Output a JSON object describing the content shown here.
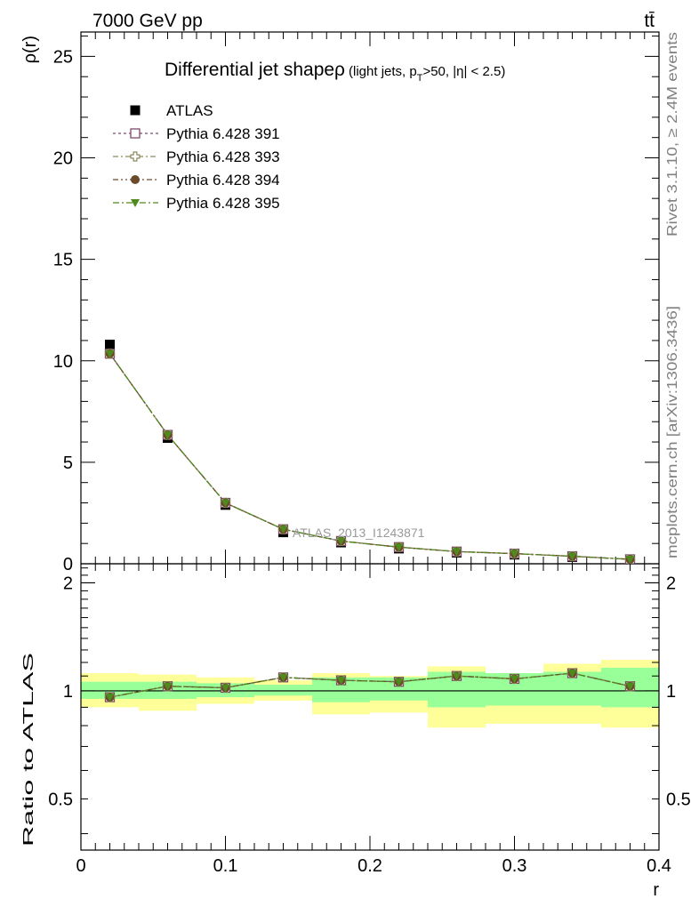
{
  "header": {
    "left": "7000 GeV pp",
    "right": "tt̄"
  },
  "side_labels": {
    "rivet": "Rivet 3.1.10, ≥ 2.4M events",
    "mcplots": "mcplots.cern.ch [arXiv:1306.3436]"
  },
  "watermark": "ATLAS_2013_I1243871",
  "chart_data": [
    {
      "panel": "main",
      "type": "line",
      "title": "Differential jet shapeρ",
      "title_suffix": "(light jets, p_T>50, |η| < 2.5)",
      "title_suffix_parts": [
        "(light jets, p",
        "T",
        ">50, |η| < 2.5)"
      ],
      "ylabel": "ρ(r)",
      "xlabel": "",
      "xlim": [
        0,
        0.4
      ],
      "ylim": [
        0,
        26.2
      ],
      "yticks": [
        0,
        5,
        10,
        15,
        20,
        25
      ],
      "ytick_labels": [
        "0",
        "5",
        "10",
        "15",
        "20",
        "25"
      ],
      "legend_position": "top-left",
      "x": [
        0.02,
        0.06,
        0.1,
        0.14,
        0.18,
        0.22,
        0.26,
        0.3,
        0.34,
        0.38
      ],
      "series": [
        {
          "name": "ATLAS",
          "marker": "square-filled",
          "color": "#000000",
          "values": [
            10.8,
            6.2,
            2.9,
            1.55,
            1.05,
            0.75,
            0.55,
            0.45,
            0.33,
            0.2
          ]
        },
        {
          "name": "Pythia 6.428 391",
          "marker": "square-open",
          "color": "#7b4a6a",
          "values": [
            10.35,
            6.35,
            3.0,
            1.7,
            1.12,
            0.82,
            0.6,
            0.5,
            0.37,
            0.22
          ]
        },
        {
          "name": "Pythia 6.428 393",
          "marker": "cross-open",
          "color": "#8a8a5a",
          "values": [
            10.35,
            6.35,
            3.0,
            1.7,
            1.12,
            0.82,
            0.6,
            0.5,
            0.37,
            0.22
          ]
        },
        {
          "name": "Pythia 6.428 394",
          "marker": "circle-filled",
          "color": "#6b4a2a",
          "values": [
            10.35,
            6.35,
            3.0,
            1.7,
            1.12,
            0.82,
            0.6,
            0.5,
            0.37,
            0.22
          ]
        },
        {
          "name": "Pythia 6.428 395",
          "marker": "triangle-down-filled",
          "color": "#4f8a1e",
          "values": [
            10.35,
            6.35,
            3.0,
            1.7,
            1.12,
            0.82,
            0.6,
            0.5,
            0.37,
            0.22
          ]
        }
      ]
    },
    {
      "panel": "ratio",
      "type": "line",
      "ylabel": "Ratio to ATLAS",
      "xlabel": "r",
      "xlim": [
        0,
        0.4
      ],
      "ylim": [
        0.36,
        2.26
      ],
      "yticks": [
        0.5,
        1,
        2
      ],
      "ytick_labels": [
        "0.5",
        "1",
        "2"
      ],
      "xticks": [
        0,
        0.1,
        0.2,
        0.3,
        0.4
      ],
      "xtick_labels": [
        "0",
        "0.1",
        "0.2",
        "0.3",
        "0.4"
      ],
      "bin_edges": [
        0.0,
        0.04,
        0.08,
        0.12,
        0.16,
        0.2,
        0.24,
        0.28,
        0.32,
        0.36,
        0.4
      ],
      "band_inner": {
        "color": "#99ff99",
        "low": [
          0.95,
          0.95,
          0.96,
          0.97,
          0.93,
          0.94,
          0.9,
          0.91,
          0.91,
          0.9
        ],
        "high": [
          1.06,
          1.06,
          1.05,
          1.04,
          1.09,
          1.09,
          1.13,
          1.12,
          1.13,
          1.16
        ]
      },
      "band_outer": {
        "color": "#ffff99",
        "low": [
          0.9,
          0.88,
          0.92,
          0.94,
          0.86,
          0.87,
          0.79,
          0.81,
          0.81,
          0.79
        ],
        "high": [
          1.12,
          1.11,
          1.09,
          1.07,
          1.12,
          1.1,
          1.17,
          1.12,
          1.19,
          1.22
        ]
      },
      "x": [
        0.02,
        0.06,
        0.1,
        0.14,
        0.18,
        0.22,
        0.26,
        0.3,
        0.34,
        0.38
      ],
      "series": [
        {
          "name": "Pythia 6.428 391",
          "marker": "square-open",
          "color": "#7b4a6a",
          "values": [
            0.96,
            1.03,
            1.02,
            1.09,
            1.07,
            1.06,
            1.1,
            1.08,
            1.12,
            1.03
          ]
        },
        {
          "name": "Pythia 6.428 393",
          "marker": "cross-open",
          "color": "#8a8a5a",
          "values": [
            0.96,
            1.03,
            1.02,
            1.09,
            1.07,
            1.06,
            1.1,
            1.08,
            1.12,
            1.03
          ]
        },
        {
          "name": "Pythia 6.428 394",
          "marker": "circle-filled",
          "color": "#6b4a2a",
          "values": [
            0.96,
            1.03,
            1.02,
            1.09,
            1.07,
            1.06,
            1.1,
            1.08,
            1.12,
            1.03
          ]
        },
        {
          "name": "Pythia 6.428 395",
          "marker": "triangle-down-filled",
          "color": "#4f8a1e",
          "values": [
            0.96,
            1.03,
            1.02,
            1.09,
            1.07,
            1.06,
            1.1,
            1.08,
            1.12,
            1.03
          ]
        }
      ]
    }
  ]
}
